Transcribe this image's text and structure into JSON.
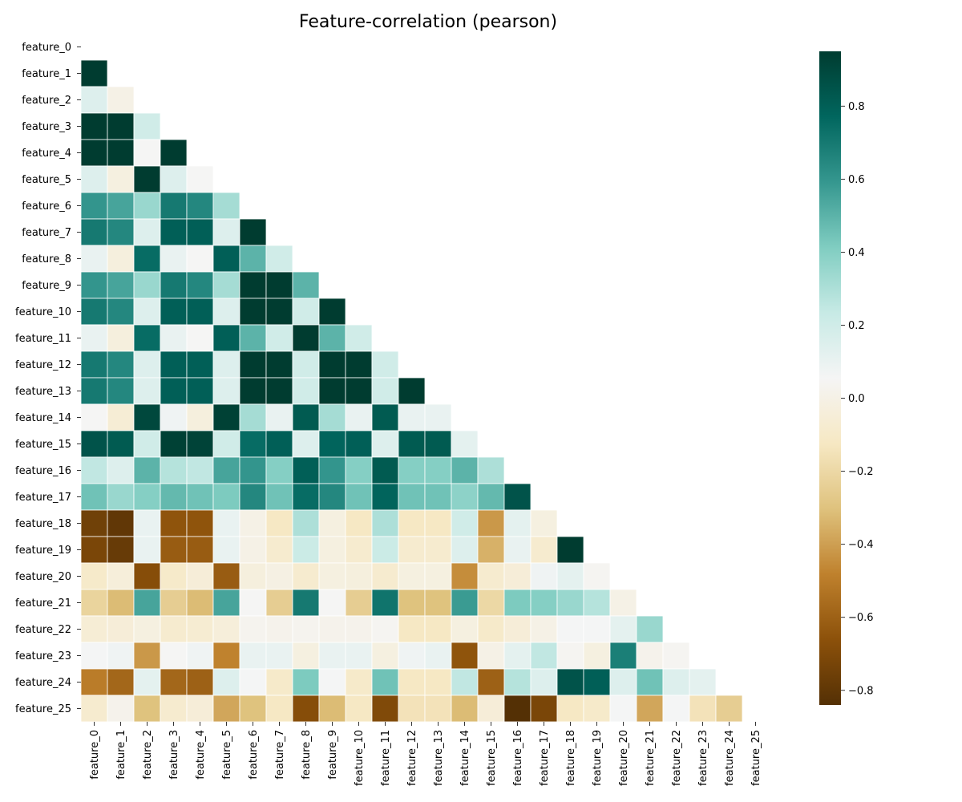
{
  "chart_data": {
    "type": "heatmap",
    "title": "Feature-correlation (pearson)",
    "mask": "upper-triangle-including-diagonal",
    "colormap": "BrBG",
    "vmin": -0.84,
    "vmax": 0.95,
    "colorbar_ticks": [
      "0.8",
      "0.6",
      "0.4",
      "0.2",
      "0.0",
      "−0.2",
      "−0.4",
      "−0.6",
      "−0.8"
    ],
    "colorbar_tick_values": [
      0.8,
      0.6,
      0.4,
      0.2,
      0.0,
      -0.2,
      -0.4,
      -0.6,
      -0.8
    ],
    "labels": [
      "feature_0",
      "feature_1",
      "feature_2",
      "feature_3",
      "feature_4",
      "feature_5",
      "feature_6",
      "feature_7",
      "feature_8",
      "feature_9",
      "feature_10",
      "feature_11",
      "feature_12",
      "feature_13",
      "feature_14",
      "feature_15",
      "feature_16",
      "feature_17",
      "feature_18",
      "feature_19",
      "feature_20",
      "feature_21",
      "feature_22",
      "feature_23",
      "feature_24",
      "feature_25"
    ],
    "values": [
      [],
      [
        0.95
      ],
      [
        0.15,
        0.0
      ],
      [
        0.95,
        0.95,
        0.2
      ],
      [
        0.95,
        0.95,
        0.05,
        0.95
      ],
      [
        0.15,
        -0.02,
        0.95,
        0.15,
        0.05
      ],
      [
        0.6,
        0.55,
        0.35,
        0.7,
        0.65,
        0.32
      ],
      [
        0.7,
        0.65,
        0.15,
        0.8,
        0.8,
        0.15,
        0.95
      ],
      [
        0.1,
        -0.03,
        0.75,
        0.1,
        0.05,
        0.8,
        0.5,
        0.2
      ],
      [
        0.6,
        0.55,
        0.35,
        0.7,
        0.65,
        0.32,
        0.95,
        0.95,
        0.5
      ],
      [
        0.7,
        0.65,
        0.15,
        0.8,
        0.8,
        0.15,
        0.95,
        0.95,
        0.2,
        0.95
      ],
      [
        0.1,
        -0.03,
        0.75,
        0.1,
        0.05,
        0.8,
        0.5,
        0.2,
        0.95,
        0.5,
        0.2
      ],
      [
        0.7,
        0.65,
        0.15,
        0.8,
        0.8,
        0.15,
        0.95,
        0.95,
        0.2,
        0.95,
        0.95,
        0.2
      ],
      [
        0.7,
        0.65,
        0.15,
        0.8,
        0.8,
        0.15,
        0.95,
        0.95,
        0.2,
        0.95,
        0.95,
        0.2,
        0.95
      ],
      [
        0.05,
        -0.06,
        0.9,
        0.08,
        -0.03,
        0.93,
        0.32,
        0.1,
        0.82,
        0.32,
        0.1,
        0.82,
        0.1,
        0.1
      ],
      [
        0.85,
        0.82,
        0.2,
        0.93,
        0.92,
        0.2,
        0.75,
        0.8,
        0.15,
        0.78,
        0.8,
        0.15,
        0.82,
        0.82,
        0.12
      ],
      [
        0.25,
        0.15,
        0.5,
        0.28,
        0.25,
        0.55,
        0.6,
        0.4,
        0.8,
        0.6,
        0.4,
        0.82,
        0.4,
        0.4,
        0.5,
        0.3
      ],
      [
        0.45,
        0.35,
        0.4,
        0.48,
        0.45,
        0.42,
        0.65,
        0.45,
        0.75,
        0.65,
        0.45,
        0.78,
        0.45,
        0.45,
        0.38,
        0.48,
        0.85
      ],
      [
        -0.75,
        -0.8,
        0.1,
        -0.65,
        -0.65,
        0.1,
        0.0,
        -0.12,
        0.3,
        -0.02,
        -0.12,
        0.3,
        -0.12,
        -0.12,
        0.2,
        -0.42,
        0.12,
        -0.02
      ],
      [
        -0.72,
        -0.78,
        0.1,
        -0.62,
        -0.62,
        0.1,
        0.0,
        -0.08,
        0.22,
        -0.02,
        -0.08,
        0.22,
        -0.08,
        -0.08,
        0.15,
        -0.35,
        0.1,
        -0.08,
        0.95
      ],
      [
        -0.1,
        -0.04,
        -0.68,
        -0.1,
        -0.05,
        -0.62,
        -0.03,
        -0.01,
        -0.08,
        -0.02,
        -0.03,
        -0.08,
        -0.02,
        -0.02,
        -0.45,
        -0.08,
        -0.05,
        0.08,
        0.12,
        0.04
      ],
      [
        -0.22,
        -0.32,
        0.55,
        -0.25,
        -0.32,
        0.55,
        0.05,
        -0.25,
        0.7,
        0.05,
        -0.25,
        0.72,
        -0.3,
        -0.3,
        0.58,
        -0.2,
        0.42,
        0.4,
        0.35,
        0.28,
        0.0
      ],
      [
        -0.06,
        -0.05,
        -0.02,
        -0.08,
        -0.07,
        -0.04,
        0.03,
        0.02,
        0.03,
        0.02,
        0.02,
        0.04,
        -0.12,
        -0.12,
        -0.02,
        -0.1,
        -0.05,
        0.0,
        0.06,
        0.06,
        0.12,
        0.35
      ],
      [
        0.06,
        0.08,
        -0.42,
        0.05,
        0.08,
        -0.48,
        0.1,
        0.1,
        -0.02,
        0.1,
        0.1,
        -0.02,
        0.08,
        0.1,
        -0.65,
        0.0,
        0.12,
        0.25,
        0.04,
        -0.02,
        0.68,
        0.02,
        0.04
      ],
      [
        -0.5,
        -0.58,
        0.12,
        -0.58,
        -0.6,
        0.15,
        0.06,
        -0.1,
        0.42,
        0.06,
        -0.1,
        0.45,
        -0.12,
        -0.12,
        0.25,
        -0.6,
        0.28,
        0.15,
        0.85,
        0.8,
        0.15,
        0.45,
        0.15,
        0.12
      ],
      [
        -0.08,
        0.02,
        -0.3,
        -0.08,
        -0.05,
        -0.38,
        -0.3,
        -0.12,
        -0.68,
        -0.32,
        -0.12,
        -0.7,
        -0.15,
        -0.15,
        -0.32,
        -0.05,
        -0.9,
        -0.72,
        -0.12,
        -0.1,
        0.06,
        -0.38,
        0.06,
        -0.15,
        -0.25
      ]
    ]
  }
}
